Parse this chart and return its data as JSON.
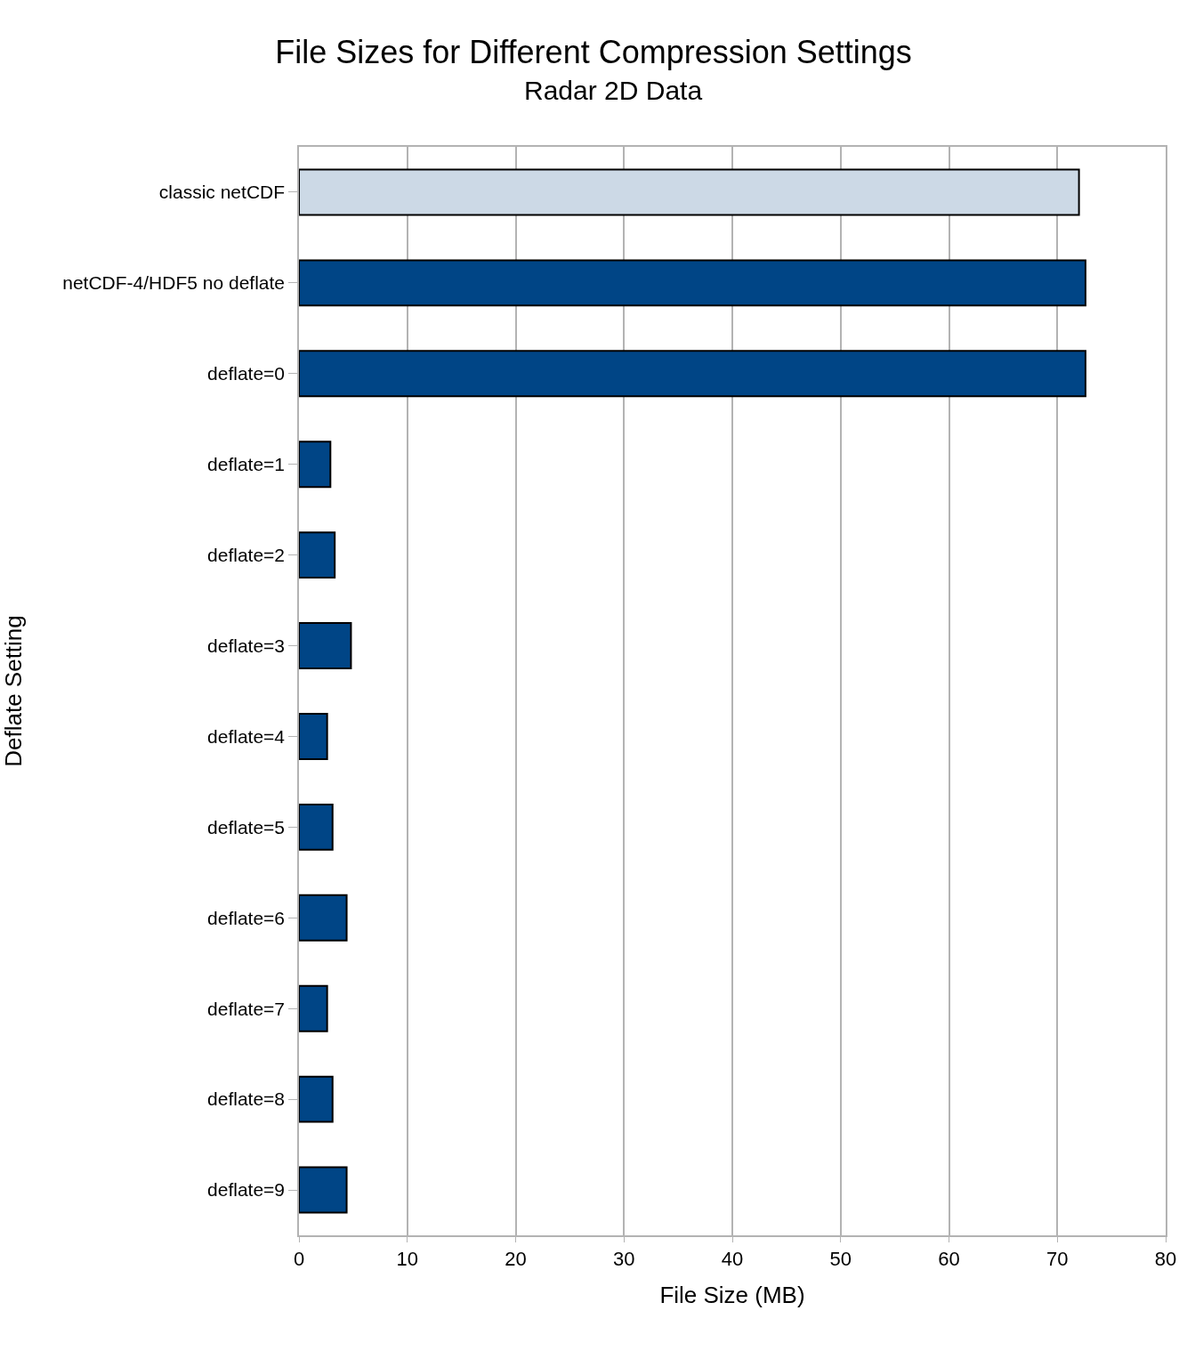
{
  "chart_data": {
    "type": "bar",
    "orientation": "horizontal",
    "title": "File Sizes for Different Compression Settings",
    "subtitle": "Radar 2D Data",
    "xlabel": "File Size (MB)",
    "ylabel": "Deflate Setting",
    "categories": [
      "classic netCDF",
      "netCDF-4/HDF5 no deflate",
      "deflate=0",
      "deflate=1",
      "deflate=2",
      "deflate=3",
      "deflate=4",
      "deflate=5",
      "deflate=6",
      "deflate=7",
      "deflate=8",
      "deflate=9"
    ],
    "values": [
      72,
      72.6,
      72.6,
      2.9,
      3.3,
      4.8,
      2.6,
      3.1,
      4.4,
      2.6,
      3.1,
      4.4
    ],
    "colors": [
      "#ccd9e6",
      "#004586",
      "#004586",
      "#004586",
      "#004586",
      "#004586",
      "#004586",
      "#004586",
      "#004586",
      "#004586",
      "#004586",
      "#004586"
    ],
    "xlim": [
      0,
      80
    ],
    "xticks": [
      0,
      10,
      20,
      30,
      40,
      50,
      60,
      70,
      80
    ],
    "grid": "x"
  }
}
